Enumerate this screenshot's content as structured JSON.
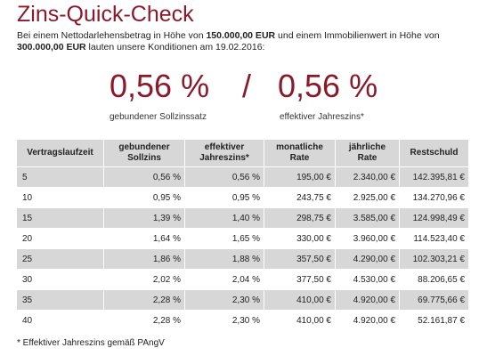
{
  "title": "Zins-Quick-Check",
  "intro": {
    "part1": "Bei einem Nettodarlehensbetrag in Höhe von ",
    "loan_amount": "150.000,00 EUR",
    "part2": " und einem Immobilienwert in Höhe von ",
    "property_value": "300.000,00 EUR",
    "part3": " lauten unsere Konditionen am 19.02.2016:"
  },
  "rates": {
    "bound_rate": "0,56 %",
    "separator": "/",
    "effective_rate": "0,56 %",
    "bound_label": "gebundener Sollzinssatz",
    "effective_label": "effektiver Jahreszins*"
  },
  "table": {
    "headers": [
      "Vertragslaufzeit",
      "gebundener Sollzins",
      "effektiver Jahreszins*",
      "monatliche Rate",
      "jährliche Rate",
      "Restschuld"
    ],
    "rows": [
      [
        "5",
        "0,56 %",
        "0,56 %",
        "195,00 €",
        "2.340,00 €",
        "142.395,81 €"
      ],
      [
        "10",
        "0,95 %",
        "0,95 %",
        "243,75 €",
        "2.925,00 €",
        "134.270,96 €"
      ],
      [
        "15",
        "1,39 %",
        "1,40 %",
        "298,75 €",
        "3.585,00 €",
        "124.998,49 €"
      ],
      [
        "20",
        "1,64 %",
        "1,65 %",
        "330,00 €",
        "3.960,00 €",
        "114.523,40 €"
      ],
      [
        "25",
        "1,86 %",
        "1,88 %",
        "357,50 €",
        "4.290,00 €",
        "102.303,21 €"
      ],
      [
        "30",
        "2,02 %",
        "2,04 %",
        "377,50 €",
        "4.530,00 €",
        "88.206,65 €"
      ],
      [
        "35",
        "2,28 %",
        "2,30 %",
        "410,00 €",
        "4.920,00 €",
        "69.775,66 €"
      ],
      [
        "40",
        "2,28 %",
        "2,30 %",
        "410,00 €",
        "4.920,00 €",
        "52.161,87 €"
      ]
    ]
  },
  "footnote": "* Effektiver Jahreszins gemäß PAngV",
  "colors": {
    "accent": "#8a1a2b",
    "row_shade": "#d7d7d7"
  }
}
